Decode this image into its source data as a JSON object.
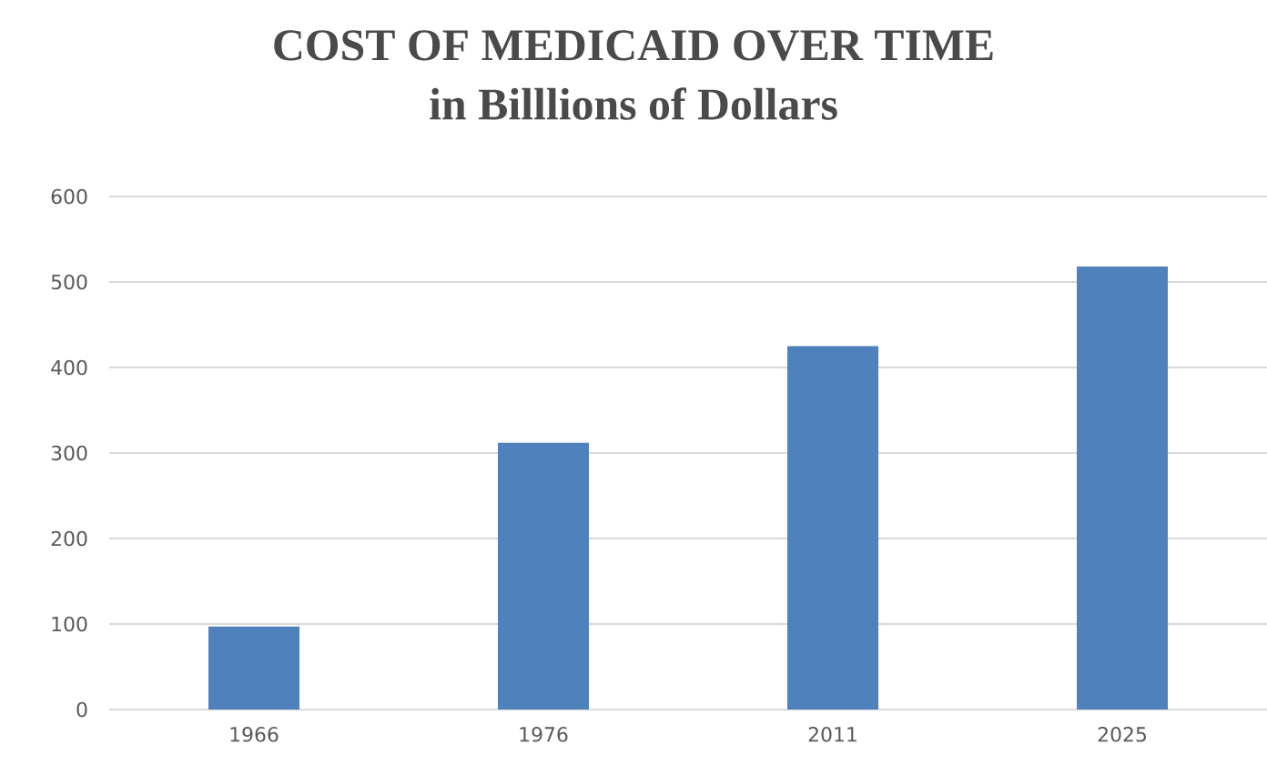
{
  "chart_data": {
    "type": "bar",
    "title": "COST OF MEDICAID OVER TIME",
    "subtitle": "in Billlions of Dollars",
    "categories": [
      "1966",
      "1976",
      "2011",
      "2025"
    ],
    "values": [
      97,
      312,
      425,
      518
    ],
    "color": "#4f81bd",
    "ylim": [
      0,
      600
    ],
    "yticks": [
      0,
      100,
      200,
      300,
      400,
      500,
      600
    ],
    "grid": "y",
    "legend": false
  }
}
